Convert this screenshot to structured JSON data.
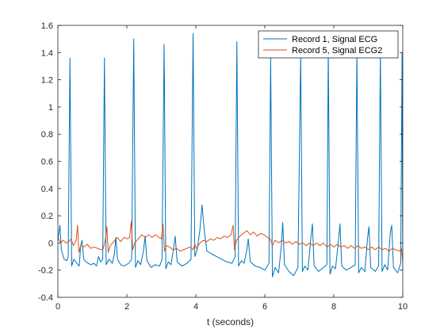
{
  "chart_data": {
    "type": "line",
    "title": "",
    "xlabel": "t (seconds)",
    "ylabel": "",
    "xlim": [
      0,
      10
    ],
    "ylim": [
      -0.4,
      1.6
    ],
    "xticks": [
      0,
      2,
      4,
      6,
      8,
      10
    ],
    "yticks": [
      -0.4,
      -0.2,
      0,
      0.2,
      0.4,
      0.6,
      0.8,
      1,
      1.2,
      1.4,
      1.6
    ],
    "xtick_labels": [
      "0",
      "2",
      "4",
      "6",
      "8",
      "10"
    ],
    "ytick_labels": [
      "-0.4",
      "-0.2",
      "0",
      "0.2",
      "0.4",
      "0.6",
      "0.8",
      "1",
      "1.2",
      "1.4",
      "1.6"
    ],
    "grid": false,
    "legend_position": "top-right",
    "series": [
      {
        "name": "Record 1, Signal ECG",
        "color": "#0072BD",
        "points": [
          [
            0.0,
            0.02
          ],
          [
            0.06,
            0.13
          ],
          [
            0.1,
            -0.05
          ],
          [
            0.18,
            -0.12
          ],
          [
            0.26,
            -0.13
          ],
          [
            0.3,
            -0.1
          ],
          [
            0.35,
            1.36
          ],
          [
            0.4,
            -0.17
          ],
          [
            0.46,
            -0.12
          ],
          [
            0.55,
            -0.15
          ],
          [
            0.62,
            -0.17
          ],
          [
            0.66,
            -0.02
          ],
          [
            0.7,
            0.02
          ],
          [
            0.75,
            -0.12
          ],
          [
            0.82,
            -0.14
          ],
          [
            0.95,
            -0.16
          ],
          [
            1.05,
            -0.15
          ],
          [
            1.12,
            -0.17
          ],
          [
            1.18,
            -0.1
          ],
          [
            1.24,
            -0.14
          ],
          [
            1.3,
            -0.12
          ],
          [
            1.35,
            1.36
          ],
          [
            1.4,
            -0.16
          ],
          [
            1.48,
            -0.12
          ],
          [
            1.58,
            -0.15
          ],
          [
            1.64,
            -0.08
          ],
          [
            1.68,
            0.04
          ],
          [
            1.73,
            -0.12
          ],
          [
            1.82,
            -0.16
          ],
          [
            1.92,
            -0.17
          ],
          [
            2.05,
            -0.15
          ],
          [
            2.14,
            -0.12
          ],
          [
            2.2,
            1.5
          ],
          [
            2.25,
            -0.18
          ],
          [
            2.32,
            -0.13
          ],
          [
            2.4,
            -0.16
          ],
          [
            2.48,
            -0.06
          ],
          [
            2.53,
            0.05
          ],
          [
            2.58,
            -0.13
          ],
          [
            2.7,
            -0.18
          ],
          [
            2.82,
            -0.16
          ],
          [
            2.95,
            -0.17
          ],
          [
            3.02,
            -0.12
          ],
          [
            3.08,
            1.46
          ],
          [
            3.13,
            -0.19
          ],
          [
            3.2,
            -0.14
          ],
          [
            3.28,
            -0.16
          ],
          [
            3.36,
            -0.03
          ],
          [
            3.4,
            0.05
          ],
          [
            3.46,
            -0.14
          ],
          [
            3.6,
            -0.17
          ],
          [
            3.74,
            -0.15
          ],
          [
            3.86,
            -0.12
          ],
          [
            3.92,
            1.54
          ],
          [
            3.97,
            -0.1
          ],
          [
            4.04,
            -0.05
          ],
          [
            4.12,
            0.1
          ],
          [
            4.18,
            0.28
          ],
          [
            4.24,
            0.1
          ],
          [
            4.32,
            -0.06
          ],
          [
            4.45,
            -0.08
          ],
          [
            4.6,
            -0.1
          ],
          [
            4.75,
            -0.12
          ],
          [
            4.9,
            -0.14
          ],
          [
            5.05,
            -0.15
          ],
          [
            5.14,
            -0.1
          ],
          [
            5.19,
            1.48
          ],
          [
            5.24,
            -0.17
          ],
          [
            5.32,
            -0.13
          ],
          [
            5.4,
            -0.15
          ],
          [
            5.48,
            -0.05
          ],
          [
            5.52,
            0.03
          ],
          [
            5.58,
            -0.14
          ],
          [
            5.72,
            -0.17
          ],
          [
            5.86,
            -0.18
          ],
          [
            6.0,
            -0.2
          ],
          [
            6.12,
            -0.15
          ],
          [
            6.17,
            1.36
          ],
          [
            6.22,
            -0.25
          ],
          [
            6.3,
            -0.18
          ],
          [
            6.4,
            -0.22
          ],
          [
            6.48,
            -0.02
          ],
          [
            6.52,
            0.15
          ],
          [
            6.57,
            -0.16
          ],
          [
            6.7,
            -0.21
          ],
          [
            6.84,
            -0.24
          ],
          [
            6.96,
            -0.18
          ],
          [
            7.04,
            1.38
          ],
          [
            7.09,
            -0.21
          ],
          [
            7.16,
            -0.17
          ],
          [
            7.25,
            -0.2
          ],
          [
            7.34,
            0.05
          ],
          [
            7.38,
            0.14
          ],
          [
            7.43,
            -0.17
          ],
          [
            7.56,
            -0.21
          ],
          [
            7.7,
            -0.18
          ],
          [
            7.8,
            -0.16
          ],
          [
            7.84,
            1.42
          ],
          [
            7.89,
            -0.23
          ],
          [
            7.96,
            -0.17
          ],
          [
            8.05,
            -0.19
          ],
          [
            8.14,
            0.03
          ],
          [
            8.18,
            0.14
          ],
          [
            8.23,
            -0.17
          ],
          [
            8.36,
            -0.2
          ],
          [
            8.5,
            -0.18
          ],
          [
            8.62,
            -0.16
          ],
          [
            8.67,
            1.4
          ],
          [
            8.72,
            -0.22
          ],
          [
            8.8,
            -0.18
          ],
          [
            8.9,
            -0.21
          ],
          [
            8.98,
            0.04
          ],
          [
            9.02,
            0.12
          ],
          [
            9.07,
            -0.18
          ],
          [
            9.2,
            -0.21
          ],
          [
            9.3,
            -0.17
          ],
          [
            9.35,
            1.4
          ],
          [
            9.4,
            -0.21
          ],
          [
            9.48,
            -0.16
          ],
          [
            9.56,
            -0.2
          ],
          [
            9.64,
            0.08
          ],
          [
            9.68,
            0.13
          ],
          [
            9.73,
            -0.18
          ],
          [
            9.85,
            -0.22
          ],
          [
            9.94,
            -0.15
          ],
          [
            9.98,
            1.4
          ],
          [
            10.0,
            -0.2
          ]
        ]
      },
      {
        "name": "Record 5, Signal ECG2",
        "color": "#D95319",
        "points": [
          [
            0.0,
            0.04
          ],
          [
            0.08,
            0.0
          ],
          [
            0.15,
            0.02
          ],
          [
            0.24,
            0.0
          ],
          [
            0.32,
            0.01
          ],
          [
            0.38,
            0.03
          ],
          [
            0.45,
            -0.02
          ],
          [
            0.53,
            0.02
          ],
          [
            0.57,
            0.13
          ],
          [
            0.61,
            -0.07
          ],
          [
            0.66,
            -0.02
          ],
          [
            0.75,
            -0.03
          ],
          [
            0.85,
            -0.01
          ],
          [
            0.95,
            -0.04
          ],
          [
            1.05,
            -0.03
          ],
          [
            1.15,
            -0.04
          ],
          [
            1.25,
            -0.05
          ],
          [
            1.32,
            -0.04
          ],
          [
            1.38,
            0.03
          ],
          [
            1.42,
            0.12
          ],
          [
            1.46,
            -0.07
          ],
          [
            1.52,
            -0.02
          ],
          [
            1.62,
            0.01
          ],
          [
            1.72,
            0.04
          ],
          [
            1.82,
            0.01
          ],
          [
            1.92,
            0.04
          ],
          [
            2.02,
            0.03
          ],
          [
            2.08,
            0.04
          ],
          [
            2.13,
            0.16
          ],
          [
            2.17,
            -0.05
          ],
          [
            2.23,
            0.0
          ],
          [
            2.33,
            0.03
          ],
          [
            2.43,
            0.06
          ],
          [
            2.53,
            0.04
          ],
          [
            2.63,
            0.06
          ],
          [
            2.73,
            0.04
          ],
          [
            2.83,
            0.06
          ],
          [
            2.93,
            0.04
          ],
          [
            3.0,
            0.03
          ],
          [
            3.05,
            0.14
          ],
          [
            3.09,
            -0.06
          ],
          [
            3.14,
            -0.02
          ],
          [
            3.24,
            -0.03
          ],
          [
            3.34,
            -0.05
          ],
          [
            3.44,
            -0.04
          ],
          [
            3.54,
            -0.06
          ],
          [
            3.64,
            -0.05
          ],
          [
            3.74,
            -0.04
          ],
          [
            3.84,
            -0.03
          ],
          [
            3.92,
            -0.05
          ],
          [
            3.97,
            -0.01
          ],
          [
            4.02,
            -0.04
          ],
          [
            4.12,
            0.0
          ],
          [
            4.22,
            0.02
          ],
          [
            4.32,
            0.01
          ],
          [
            4.42,
            0.03
          ],
          [
            4.52,
            0.02
          ],
          [
            4.62,
            0.04
          ],
          [
            4.72,
            0.03
          ],
          [
            4.82,
            0.05
          ],
          [
            4.92,
            0.04
          ],
          [
            5.02,
            0.06
          ],
          [
            5.08,
            0.13
          ],
          [
            5.12,
            -0.05
          ],
          [
            5.18,
            0.02
          ],
          [
            5.28,
            0.05
          ],
          [
            5.38,
            0.07
          ],
          [
            5.48,
            0.09
          ],
          [
            5.58,
            0.06
          ],
          [
            5.68,
            0.08
          ],
          [
            5.78,
            0.05
          ],
          [
            5.88,
            0.07
          ],
          [
            5.98,
            0.06
          ],
          [
            6.08,
            0.04
          ],
          [
            6.16,
            0.03
          ],
          [
            6.22,
            -0.02
          ],
          [
            6.3,
            0.02
          ],
          [
            6.4,
            0.0
          ],
          [
            6.5,
            0.02
          ],
          [
            6.6,
            0.0
          ],
          [
            6.7,
            0.01
          ],
          [
            6.8,
            -0.01
          ],
          [
            6.9,
            0.01
          ],
          [
            7.0,
            -0.01
          ],
          [
            7.1,
            0.0
          ],
          [
            7.2,
            -0.02
          ],
          [
            7.3,
            0.0
          ],
          [
            7.4,
            -0.02
          ],
          [
            7.5,
            0.0
          ],
          [
            7.6,
            -0.02
          ],
          [
            7.7,
            0.0
          ],
          [
            7.8,
            -0.03
          ],
          [
            7.9,
            -0.01
          ],
          [
            8.0,
            -0.03
          ],
          [
            8.1,
            -0.01
          ],
          [
            8.2,
            -0.03
          ],
          [
            8.3,
            -0.02
          ],
          [
            8.4,
            -0.04
          ],
          [
            8.5,
            -0.02
          ],
          [
            8.6,
            -0.04
          ],
          [
            8.7,
            -0.02
          ],
          [
            8.8,
            -0.04
          ],
          [
            8.9,
            -0.03
          ],
          [
            9.0,
            -0.05
          ],
          [
            9.1,
            -0.03
          ],
          [
            9.2,
            -0.05
          ],
          [
            9.3,
            -0.03
          ],
          [
            9.4,
            -0.05
          ],
          [
            9.5,
            -0.04
          ],
          [
            9.6,
            -0.06
          ],
          [
            9.7,
            -0.04
          ],
          [
            9.8,
            -0.05
          ],
          [
            9.9,
            -0.06
          ],
          [
            9.96,
            -0.04
          ],
          [
            10.0,
            -0.14
          ]
        ]
      }
    ]
  }
}
